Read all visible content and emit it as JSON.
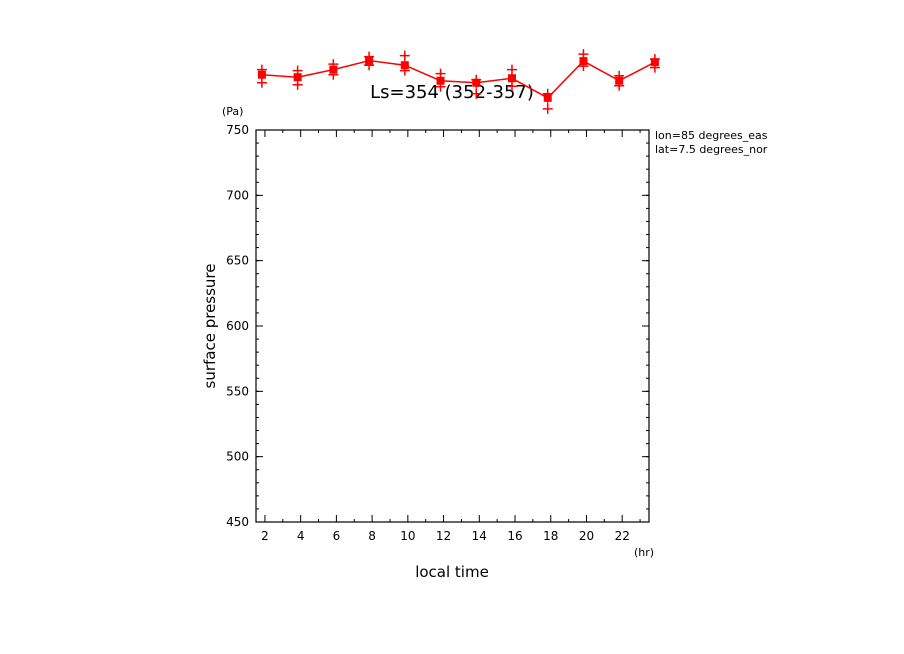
{
  "chart_data": {
    "type": "line",
    "title": "Ls=354 (352-357)",
    "ylabel": "surface pressure",
    "yunit": "(Pa)",
    "xlabel": "local time",
    "xunit": "(hr)",
    "info": [
      "lon=85 degrees_eas",
      "lat=7.5 degrees_nor"
    ],
    "xlim": [
      1.5,
      23.5
    ],
    "ylim": [
      450,
      750
    ],
    "xticks": [
      2,
      4,
      6,
      8,
      10,
      12,
      14,
      16,
      18,
      20,
      22
    ],
    "yticks": [
      450,
      500,
      550,
      600,
      650,
      700,
      750
    ],
    "series_color": "#ff0000",
    "series": [
      {
        "x": [
          1.83,
          3.83,
          5.83,
          7.83,
          9.83,
          11.83,
          13.83,
          15.83,
          17.83,
          19.83,
          21.83,
          23.83
        ],
        "y": [
          792.3,
          790.4,
          796.2,
          803.1,
          799.6,
          787.7,
          786.2,
          789.6,
          774.6,
          802.7,
          787.7,
          801.9
        ],
        "markers_upper": [
          796.2,
          795.4,
          800.4,
          806.2,
          806.9,
          793.1,
          788.5,
          796.2,
          777.7,
          808.1,
          791.5,
          804.2
        ],
        "markers_lower": [
          786.2,
          784.6,
          792.3,
          799.6,
          795.4,
          783.1,
          777.7,
          783.5,
          766.2,
          798.9,
          783.9,
          797.7
        ]
      }
    ]
  }
}
